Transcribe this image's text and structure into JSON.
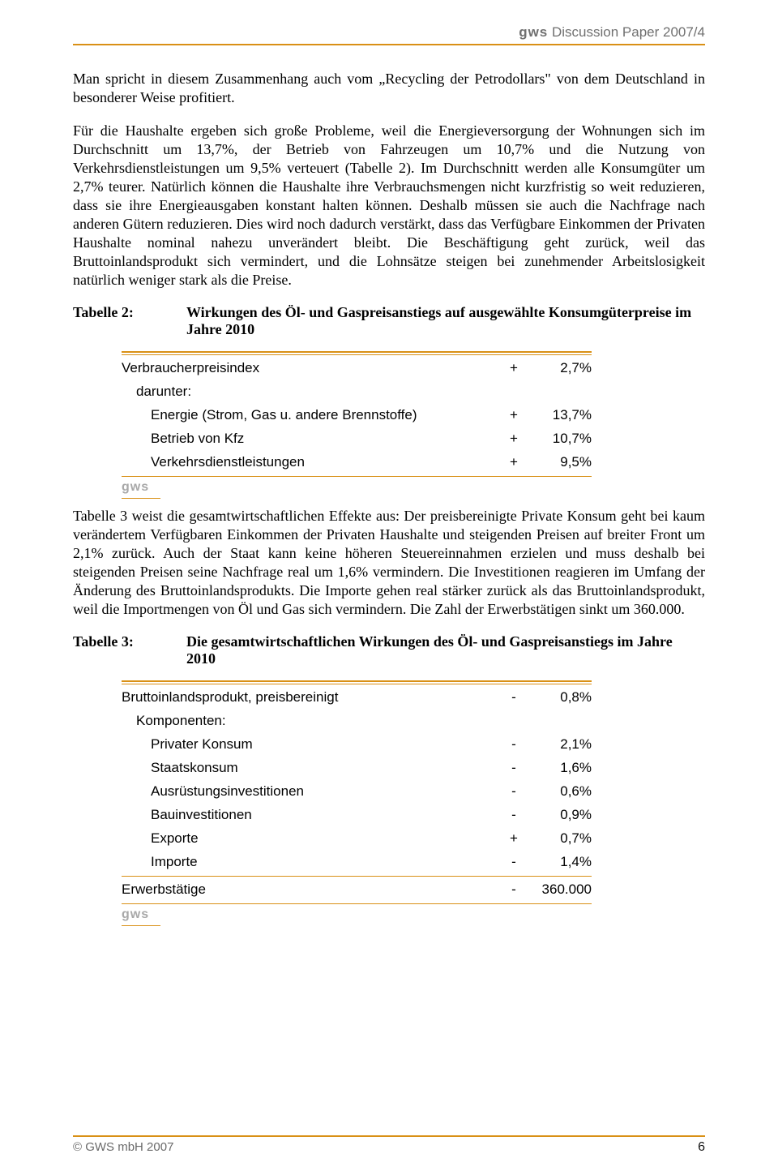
{
  "colors": {
    "accent": "#d99015",
    "header_text": "#707070",
    "gws_mark": "#a8a8a8",
    "body_text": "#000000",
    "background": "#ffffff"
  },
  "typography": {
    "body_font": "Times New Roman",
    "table_font": "Arial",
    "header_font": "Verdana",
    "body_size_pt": 13,
    "table_size_pt": 12
  },
  "header": {
    "brand": "gws",
    "title": "Discussion Paper 2007/4"
  },
  "paragraphs": {
    "p1": "Man spricht in diesem Zusammenhang auch vom „Recycling der Petrodollars\" von dem Deutschland in besonderer Weise profitiert.",
    "p2": "Für die Haushalte ergeben sich große Probleme, weil die Energieversorgung der Wohnungen sich im Durchschnitt um 13,7%, der Betrieb von Fahrzeugen um 10,7% und die Nutzung von Verkehrsdienstleistungen um 9,5% verteuert (Tabelle 2). Im Durchschnitt werden alle Konsumgüter um 2,7% teurer. Natürlich können die Haushalte ihre Verbrauchsmengen nicht kurzfristig so weit reduzieren, dass sie ihre Energieausgaben konstant halten können. Deshalb müssen sie auch die Nachfrage nach anderen Gütern reduzieren. Dies wird noch dadurch verstärkt, dass das Verfügbare Einkommen der Privaten Haushalte nominal nahezu unverändert bleibt. Die Beschäftigung geht zurück, weil das Bruttoinlandsprodukt sich vermindert, und die Lohnsätze steigen bei zunehmender Arbeitslosigkeit natürlich weniger stark als die Preise.",
    "p3": "Tabelle 3 weist die gesamtwirtschaftlichen Effekte aus: Der preisbereinigte Private Konsum geht bei kaum verändertem Verfügbaren Einkommen der Privaten Haushalte und steigenden Preisen auf breiter Front um 2,1% zurück. Auch der Staat kann keine höheren Steuereinnahmen erzielen und muss deshalb bei steigenden Preisen seine Nachfrage real um 1,6% vermindern. Die Investitionen reagieren im Umfang der Änderung des Bruttoinlandsprodukts. Die Importe gehen real stärker zurück als das Bruttoinlandsprodukt, weil die Importmengen von Öl und Gas sich vermindern. Die Zahl der Erwerbstätigen sinkt um 360.000."
  },
  "table2": {
    "label": "Tabelle 2:",
    "title": "Wirkungen des Öl- und Gaspreisanstiegs auf ausgewählte Konsumgüterpreise im Jahre 2010",
    "rows": [
      {
        "label": "Verbraucherpreisindex",
        "indent": 0,
        "sign": "+",
        "value": "2,7%"
      },
      {
        "label": "darunter:",
        "indent": 1,
        "sign": "",
        "value": ""
      },
      {
        "label": "Energie (Strom, Gas u. andere Brennstoffe)",
        "indent": 2,
        "sign": "+",
        "value": "13,7%"
      },
      {
        "label": "Betrieb von Kfz",
        "indent": 2,
        "sign": "+",
        "value": "10,7%"
      },
      {
        "label": "Verkehrsdienstleistungen",
        "indent": 2,
        "sign": "+",
        "value": "9,5%"
      }
    ],
    "mark": "gws"
  },
  "table3": {
    "label": "Tabelle 3:",
    "title": "Die gesamtwirtschaftlichen Wirkungen des Öl- und Gaspreisanstiegs im Jahre 2010",
    "rows": [
      {
        "label": "Bruttoinlandsprodukt, preisbereinigt",
        "indent": 0,
        "sign": "-",
        "value": "0,8%"
      },
      {
        "label": "Komponenten:",
        "indent": 1,
        "sign": "",
        "value": ""
      },
      {
        "label": "Privater Konsum",
        "indent": 2,
        "sign": "-",
        "value": "2,1%"
      },
      {
        "label": "Staatskonsum",
        "indent": 2,
        "sign": "-",
        "value": "1,6%"
      },
      {
        "label": "Ausrüstungsinvestitionen",
        "indent": 2,
        "sign": "-",
        "value": "0,6%"
      },
      {
        "label": "Bauinvestitionen",
        "indent": 2,
        "sign": "-",
        "value": "0,9%"
      },
      {
        "label": "Exporte",
        "indent": 2,
        "sign": "+",
        "value": "0,7%"
      },
      {
        "label": "Importe",
        "indent": 2,
        "sign": "-",
        "value": "1,4%"
      },
      {
        "label": "Erwerbstätige",
        "indent": 0,
        "sign": "-",
        "value": "360.000"
      }
    ],
    "mark": "gws"
  },
  "footer": {
    "copyright": "© GWS mbH 2007",
    "page_number": "6"
  }
}
